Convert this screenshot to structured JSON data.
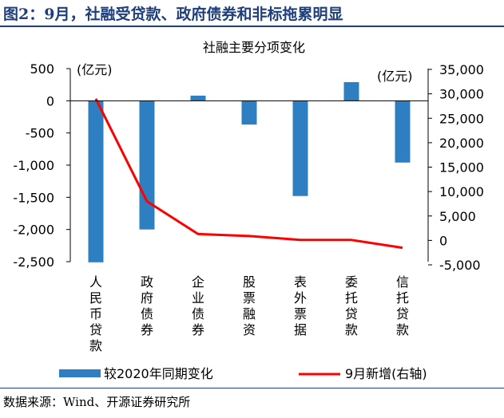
{
  "figure": {
    "title": "图2：9月，社融受贷款、政府债券和非标拖累明显",
    "source": "数据来源：Wind、开源证券研究所"
  },
  "colors": {
    "bar": "#2e7fc1",
    "line": "#ff0000",
    "title": "#1f3f7a"
  },
  "chart_data": {
    "type": "bar+line",
    "title": "社融主要分项变化",
    "categories": [
      "人民币贷款",
      "政府债券",
      "企业债券",
      "股票融资",
      "表外票据",
      "委托贷款",
      "信托贷款"
    ],
    "series": [
      {
        "name": "较2020年同期变化",
        "type": "bar",
        "axis": "left",
        "values": [
          -2510,
          -2000,
          80,
          -370,
          -1480,
          290,
          -960
        ]
      },
      {
        "name": "9月新增(右轴)",
        "type": "line",
        "axis": "right",
        "values": [
          29000,
          8000,
          1300,
          900,
          100,
          100,
          -1500
        ]
      }
    ],
    "left_axis": {
      "unit": "(亿元)",
      "min": -2500,
      "max": 500,
      "ticks": [
        500,
        0,
        -500,
        -1000,
        -1500,
        -2000,
        -2500
      ]
    },
    "right_axis": {
      "unit": "(亿元)",
      "min": -5000,
      "max": 35000,
      "ticks": [
        35000,
        30000,
        25000,
        20000,
        15000,
        10000,
        5000,
        0,
        -5000
      ]
    },
    "legend_position": "bottom"
  }
}
